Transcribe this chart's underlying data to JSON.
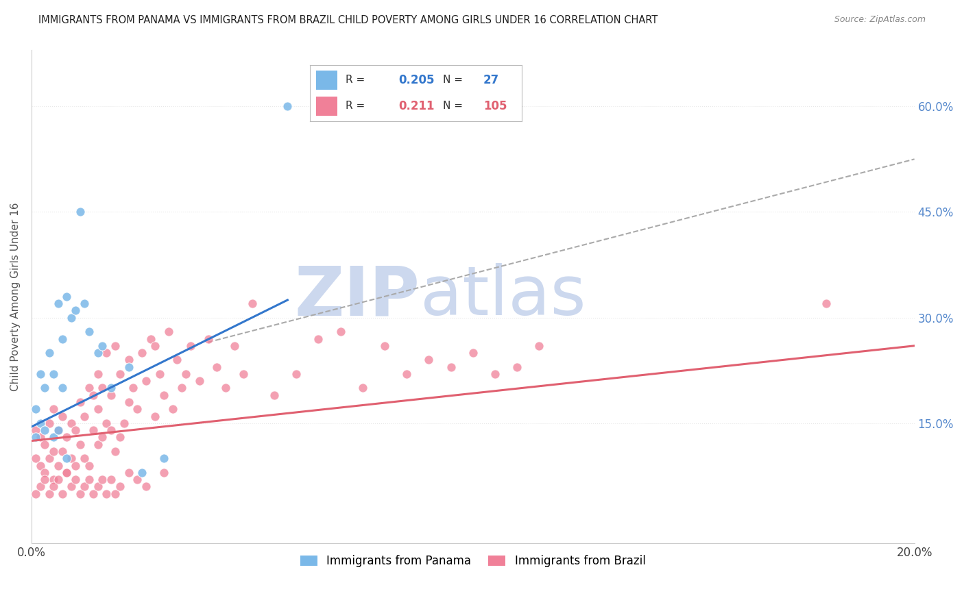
{
  "title": "IMMIGRANTS FROM PANAMA VS IMMIGRANTS FROM BRAZIL CHILD POVERTY AMONG GIRLS UNDER 16 CORRELATION CHART",
  "source": "Source: ZipAtlas.com",
  "ylabel": "Child Poverty Among Girls Under 16",
  "ytick_labels": [
    "15.0%",
    "30.0%",
    "45.0%",
    "60.0%"
  ],
  "ytick_values": [
    0.15,
    0.3,
    0.45,
    0.6
  ],
  "xlim": [
    0.0,
    0.2
  ],
  "ylim": [
    -0.02,
    0.68
  ],
  "panama_color": "#7ab8e8",
  "brazil_color": "#f08098",
  "panama_line_color": "#3377cc",
  "brazil_line_color": "#e06070",
  "panama_R": "0.205",
  "panama_N": "27",
  "brazil_R": "0.211",
  "brazil_N": "105",
  "panama_scatter_x": [
    0.001,
    0.001,
    0.002,
    0.002,
    0.003,
    0.003,
    0.004,
    0.005,
    0.005,
    0.006,
    0.006,
    0.007,
    0.007,
    0.008,
    0.008,
    0.009,
    0.01,
    0.011,
    0.012,
    0.013,
    0.015,
    0.016,
    0.018,
    0.022,
    0.025,
    0.03,
    0.058
  ],
  "panama_scatter_y": [
    0.13,
    0.17,
    0.15,
    0.22,
    0.14,
    0.2,
    0.25,
    0.13,
    0.22,
    0.14,
    0.32,
    0.2,
    0.27,
    0.1,
    0.33,
    0.3,
    0.31,
    0.45,
    0.32,
    0.28,
    0.25,
    0.26,
    0.2,
    0.23,
    0.08,
    0.1,
    0.6
  ],
  "brazil_scatter_x": [
    0.001,
    0.001,
    0.002,
    0.002,
    0.003,
    0.003,
    0.004,
    0.004,
    0.005,
    0.005,
    0.005,
    0.006,
    0.006,
    0.007,
    0.007,
    0.008,
    0.008,
    0.009,
    0.009,
    0.01,
    0.01,
    0.011,
    0.011,
    0.012,
    0.012,
    0.013,
    0.013,
    0.014,
    0.014,
    0.015,
    0.015,
    0.015,
    0.016,
    0.016,
    0.017,
    0.017,
    0.018,
    0.018,
    0.019,
    0.019,
    0.02,
    0.02,
    0.021,
    0.022,
    0.022,
    0.023,
    0.024,
    0.025,
    0.026,
    0.027,
    0.028,
    0.028,
    0.029,
    0.03,
    0.031,
    0.032,
    0.033,
    0.034,
    0.035,
    0.036,
    0.038,
    0.04,
    0.042,
    0.044,
    0.046,
    0.048,
    0.05,
    0.055,
    0.06,
    0.065,
    0.07,
    0.075,
    0.08,
    0.085,
    0.09,
    0.095,
    0.1,
    0.105,
    0.11,
    0.115,
    0.001,
    0.002,
    0.003,
    0.004,
    0.005,
    0.006,
    0.007,
    0.008,
    0.009,
    0.01,
    0.011,
    0.012,
    0.013,
    0.014,
    0.015,
    0.016,
    0.017,
    0.018,
    0.019,
    0.02,
    0.022,
    0.024,
    0.026,
    0.03,
    0.18
  ],
  "brazil_scatter_y": [
    0.1,
    0.14,
    0.09,
    0.13,
    0.08,
    0.12,
    0.1,
    0.15,
    0.07,
    0.11,
    0.17,
    0.09,
    0.14,
    0.11,
    0.16,
    0.08,
    0.13,
    0.1,
    0.15,
    0.09,
    0.14,
    0.12,
    0.18,
    0.1,
    0.16,
    0.09,
    0.2,
    0.14,
    0.19,
    0.12,
    0.17,
    0.22,
    0.13,
    0.2,
    0.15,
    0.25,
    0.14,
    0.19,
    0.11,
    0.26,
    0.13,
    0.22,
    0.15,
    0.18,
    0.24,
    0.2,
    0.17,
    0.25,
    0.21,
    0.27,
    0.16,
    0.26,
    0.22,
    0.19,
    0.28,
    0.17,
    0.24,
    0.2,
    0.22,
    0.26,
    0.21,
    0.27,
    0.23,
    0.2,
    0.26,
    0.22,
    0.32,
    0.19,
    0.22,
    0.27,
    0.28,
    0.2,
    0.26,
    0.22,
    0.24,
    0.23,
    0.25,
    0.22,
    0.23,
    0.26,
    0.05,
    0.06,
    0.07,
    0.05,
    0.06,
    0.07,
    0.05,
    0.08,
    0.06,
    0.07,
    0.05,
    0.06,
    0.07,
    0.05,
    0.06,
    0.07,
    0.05,
    0.07,
    0.05,
    0.06,
    0.08,
    0.07,
    0.06,
    0.08,
    0.32
  ],
  "panama_trend_x": [
    0.0,
    0.058
  ],
  "panama_trend_y": [
    0.145,
    0.325
  ],
  "brazil_trend_x": [
    0.0,
    0.2
  ],
  "brazil_trend_y": [
    0.125,
    0.26
  ],
  "dash_line_x": [
    0.04,
    0.2
  ],
  "dash_line_y": [
    0.265,
    0.525
  ],
  "watermark_zip": "ZIP",
  "watermark_atlas": "atlas",
  "watermark_color": "#ccd8ee",
  "background_color": "#ffffff",
  "grid_color": "#e8e8e8"
}
